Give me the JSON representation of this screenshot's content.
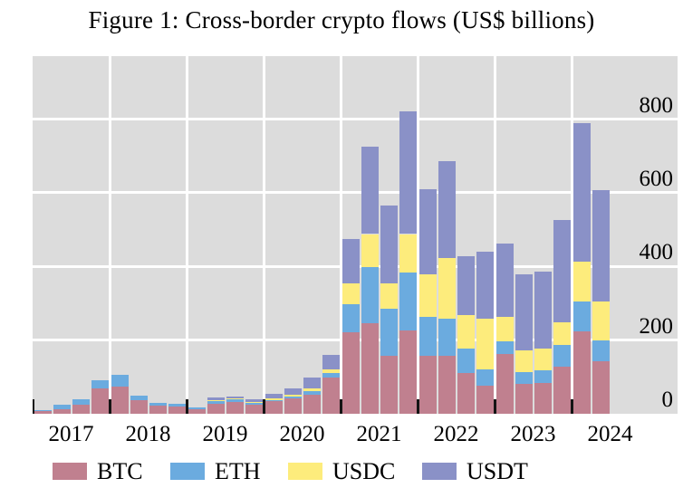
{
  "title": "Figure 1: Cross-border crypto flows (US$ billions)",
  "chart_data": {
    "type": "bar",
    "stacked": true,
    "title": "Figure 1: Cross-border crypto flows (US$ billions)",
    "x_year_labels": [
      "2017",
      "2018",
      "2019",
      "2020",
      "2021",
      "2022",
      "2023",
      "2024"
    ],
    "categories": [
      "2017Q1",
      "2017Q2",
      "2017Q3",
      "2017Q4",
      "2018Q1",
      "2018Q2",
      "2018Q3",
      "2018Q4",
      "2019Q1",
      "2019Q2",
      "2019Q3",
      "2019Q4",
      "2020Q1",
      "2020Q2",
      "2020Q3",
      "2020Q4",
      "2021Q1",
      "2021Q2",
      "2021Q3",
      "2021Q4",
      "2022Q1",
      "2022Q2",
      "2022Q3",
      "2022Q4",
      "2023Q1",
      "2023Q2",
      "2023Q3",
      "2023Q4",
      "2024Q1",
      "2024Q2"
    ],
    "series": [
      {
        "name": "BTC",
        "color": "#c0808f",
        "values": [
          7,
          13,
          24,
          69,
          73,
          38,
          21,
          20,
          12,
          28,
          32,
          24,
          34,
          41,
          52,
          99,
          222,
          247,
          157,
          225,
          157,
          157,
          111,
          76,
          162,
          82,
          84,
          127,
          224,
          142
        ]
      },
      {
        "name": "ETH",
        "color": "#6babdf",
        "values": [
          3,
          12,
          16,
          22,
          32,
          10,
          8,
          8,
          6,
          6,
          7,
          7,
          4,
          6,
          10,
          11,
          76,
          152,
          127,
          159,
          106,
          102,
          66,
          44,
          35,
          30,
          33,
          60,
          82,
          56
        ]
      },
      {
        "name": "USDC",
        "color": "#fdec7c",
        "values": [
          0,
          0,
          0,
          0,
          0,
          0,
          0,
          0,
          0,
          4,
          2,
          2,
          3,
          5,
          8,
          10,
          56,
          89,
          70,
          104,
          115,
          164,
          90,
          137,
          67,
          61,
          61,
          61,
          106,
          108
        ]
      },
      {
        "name": "USDT",
        "color": "#8a91c7",
        "values": [
          0,
          0,
          0,
          0,
          0,
          0,
          0,
          0,
          0,
          6,
          6,
          7,
          13,
          16,
          29,
          39,
          120,
          237,
          212,
          332,
          232,
          263,
          162,
          183,
          197,
          205,
          209,
          279,
          378,
          302
        ]
      }
    ],
    "yticks": [
      0,
      200,
      400,
      600,
      800
    ],
    "ylim": [
      0,
      971
    ],
    "y_axis_side": "right-inside",
    "grid": true,
    "plot_bg": "#dcdcdc",
    "grid_color": "#ffffff",
    "tick_color": "#141414",
    "legend_position": "bottom"
  },
  "legend": {
    "items": [
      {
        "label": "BTC"
      },
      {
        "label": "ETH"
      },
      {
        "label": "USDC"
      },
      {
        "label": "USDT"
      }
    ]
  }
}
